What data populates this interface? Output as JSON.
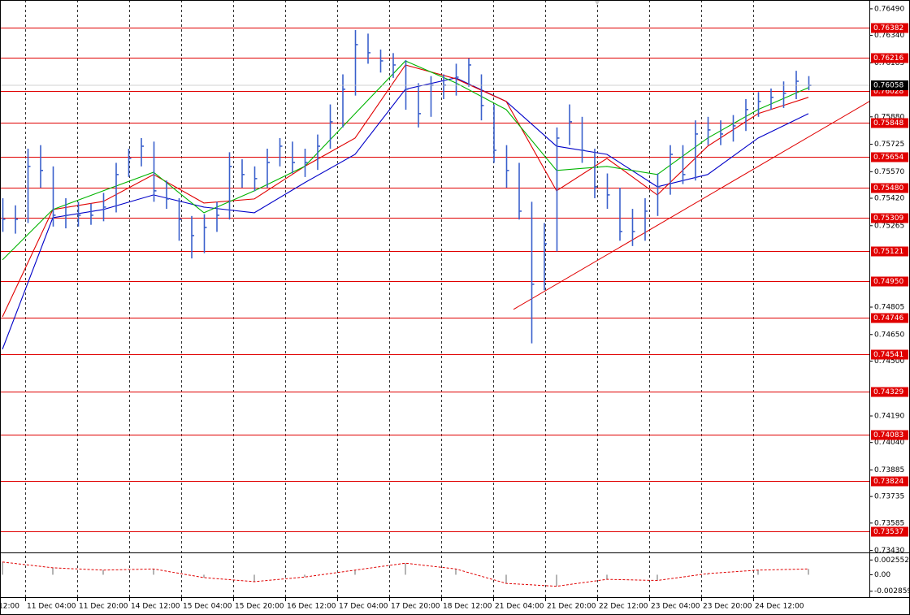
{
  "chart_data": {
    "type": "ohlc",
    "ylim": [
      0.73419,
      0.7654
    ],
    "yticks": [
      {
        "value": 0.7649,
        "label": "0.76490"
      },
      {
        "value": 0.7634,
        "label": "0.76340"
      },
      0.76185,
      {
        "value": 0.7588,
        "label": "0.75880"
      },
      0.75725,
      {
        "value": 0.7557,
        "label": "0.75570"
      },
      {
        "value": 0.7542,
        "label": "0.75420"
      },
      0.75265,
      0.74805,
      {
        "value": 0.7465,
        "label": "0.74650"
      },
      {
        "value": 0.745,
        "label": "0.74500"
      },
      {
        "value": 0.7419,
        "label": "0.74190"
      },
      {
        "value": 0.7404,
        "label": "0.74040"
      },
      0.73885,
      0.73735,
      0.73585,
      {
        "value": 0.7343,
        "label": "0.73430"
      }
    ],
    "grid": true,
    "categories": [
      "12:00",
      "11 Dec 04:00",
      "11 Dec 20:00",
      "14 Dec 12:00",
      "15 Dec 04:00",
      "15 Dec 20:00",
      "16 Dec 12:00",
      "17 Dec 04:00",
      "17 Dec 20:00",
      "18 Dec 12:00",
      "21 Dec 04:00",
      "21 Dec 20:00",
      "22 Dec 12:00",
      "23 Dec 04:00",
      "23 Dec 20:00",
      "24 Dec 12:00"
    ],
    "price": {
      "color": "#3a60cc",
      "high": [
        0.7542,
        0.7538,
        0.757,
        0.7572,
        0.756,
        0.7542,
        0.754,
        0.7539,
        0.7545,
        0.7562,
        0.757,
        0.7576,
        0.7574,
        0.7552,
        0.7542,
        0.7532,
        0.7533,
        0.754,
        0.7568,
        0.7564,
        0.756,
        0.757,
        0.7576,
        0.7574,
        0.757,
        0.7578,
        0.7595,
        0.7612,
        0.7637,
        0.7635,
        0.7626,
        0.7624,
        0.762,
        0.7607,
        0.7611,
        0.7612,
        0.7618,
        0.7621,
        0.7612,
        0.7595,
        0.7572,
        0.7562,
        0.754,
        0.7528,
        0.7582,
        0.7595,
        0.7588,
        0.757,
        0.7556,
        0.7548,
        0.7536,
        0.7542,
        0.7556,
        0.7572,
        0.7572,
        0.7586,
        0.7588,
        0.7586,
        0.7589,
        0.7598,
        0.7602,
        0.7604,
        0.7608,
        0.7614,
        0.7611
      ],
      "low": [
        0.7523,
        0.7522,
        0.7528,
        0.7548,
        0.7526,
        0.7525,
        0.7526,
        0.7527,
        0.7529,
        0.7534,
        0.7554,
        0.756,
        0.754,
        0.7536,
        0.7518,
        0.7508,
        0.7511,
        0.7523,
        0.753,
        0.7548,
        0.7546,
        0.7548,
        0.756,
        0.7556,
        0.7554,
        0.7558,
        0.757,
        0.7582,
        0.76,
        0.7618,
        0.7613,
        0.761,
        0.7592,
        0.7582,
        0.7588,
        0.7598,
        0.76,
        0.7605,
        0.7586,
        0.7562,
        0.7548,
        0.753,
        0.746,
        0.749,
        0.7512,
        0.7572,
        0.7562,
        0.7542,
        0.7536,
        0.7518,
        0.7515,
        0.7518,
        0.7532,
        0.7544,
        0.755,
        0.7552,
        0.7572,
        0.7572,
        0.7574,
        0.758,
        0.7588,
        0.7592,
        0.7593,
        0.7598,
        0.7603
      ],
      "close": [
        0.75301,
        0.75301,
        0.756,
        0.75577,
        0.75324,
        0.75324,
        0.75324,
        0.75324,
        0.7537,
        0.75554,
        0.75645,
        0.75714,
        0.75462,
        0.75416,
        0.75301,
        0.75209,
        0.75255,
        0.75324,
        0.756,
        0.75554,
        0.75531,
        0.75622,
        0.75714,
        0.75622,
        0.75622,
        0.75714,
        0.75852,
        0.76036,
        0.76288,
        0.76242,
        0.76196,
        0.76173,
        0.76036,
        0.75898,
        0.76059,
        0.76059,
        0.76104,
        0.76173,
        0.75944,
        0.75691,
        0.75577,
        0.75347,
        0.74934,
        0.75163,
        0.7576,
        0.75852,
        0.75691,
        0.75485,
        0.75439,
        0.75232,
        0.75232,
        0.75347,
        0.75485,
        0.75668,
        0.75554,
        0.75783,
        0.75806,
        0.75783,
        0.75829,
        0.75921,
        0.75967,
        0.7599,
        0.76013,
        0.76081,
        0.76058
      ]
    },
    "moving_averages": [
      {
        "color": "#0000c8",
        "values": [
          0.74567,
          0.7531,
          0.75356,
          0.75439,
          0.7537,
          0.75338,
          0.75508,
          0.75668,
          0.76036,
          0.761,
          0.75967,
          0.75714,
          0.75668,
          0.75485,
          0.75554,
          0.7576,
          0.75898
        ]
      },
      {
        "color": "#e00000",
        "values": [
          0.7475,
          0.75356,
          0.75402,
          0.75554,
          0.75393,
          0.75416,
          0.756,
          0.7576,
          0.76173,
          0.76095,
          0.75967,
          0.75462,
          0.75645,
          0.75439,
          0.75714,
          0.75898,
          0.7599
        ]
      },
      {
        "color": "#00b400",
        "values": [
          0.75072,
          0.75356,
          0.75462,
          0.75567,
          0.75338,
          0.75462,
          0.756,
          0.75898,
          0.76196,
          0.76072,
          0.75921,
          0.75577,
          0.756,
          0.75554,
          0.7576,
          0.75921,
          0.76045
        ]
      }
    ],
    "trendline": {
      "color": "#e00000",
      "values": [
        0.74792,
        0.75967
      ]
    },
    "levels": {
      "color": "#e00000",
      "values": [
        0.76382,
        0.76216,
        0.76028,
        0.75848,
        0.75654,
        {
          "value": 0.7548,
          "label": "0.75480"
        },
        0.75309,
        0.75121,
        {
          "value": 0.7495,
          "label": "0.74950"
        },
        0.74746,
        0.74541,
        0.74329,
        0.74083,
        0.73824,
        0.73537
      ]
    },
    "current_price": 0.76058,
    "oscillator": {
      "ylim": [
        -0.00374,
        0.00372
      ],
      "yticks": [
        0.002552,
        {
          "value": 0,
          "label": "0.00"
        },
        -0.002859
      ],
      "bar_color": "#b4b4b4",
      "color": "#e00000",
      "values": [
        0.0022,
        0.0012,
        0.0008,
        0.001,
        -0.0005,
        -0.0012,
        -0.0004,
        0.0008,
        0.002,
        0.001,
        -0.0015,
        -0.002,
        -0.0008,
        -0.001,
        0.0002,
        0.0008,
        0.001
      ]
    }
  }
}
